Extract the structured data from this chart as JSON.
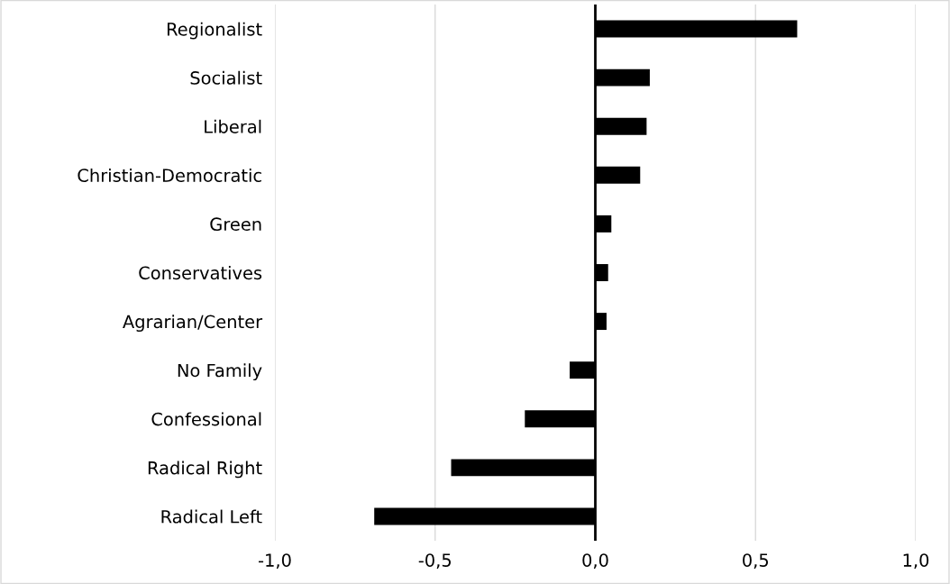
{
  "chart_data": {
    "type": "bar",
    "orientation": "horizontal",
    "categories": [
      "Regionalist",
      "Socialist",
      "Liberal",
      "Christian-Democratic",
      "Green",
      "Conservatives",
      "Agrarian/Center",
      "No Family",
      "Confessional",
      "Radical Right",
      "Radical Left"
    ],
    "values": [
      0.63,
      0.17,
      0.16,
      0.14,
      0.05,
      0.04,
      0.035,
      -0.08,
      -0.22,
      -0.45,
      -0.69
    ],
    "color": "#000000",
    "xlim": [
      -1.0,
      1.0
    ],
    "xticks": [
      {
        "value": -1.0,
        "label": "-1,0"
      },
      {
        "value": -0.5,
        "label": "-0,5"
      },
      {
        "value": 0.0,
        "label": "0,0"
      },
      {
        "value": 0.5,
        "label": "0,5"
      },
      {
        "value": 1.0,
        "label": "1,0"
      }
    ],
    "grid": "x",
    "legend": false
  }
}
